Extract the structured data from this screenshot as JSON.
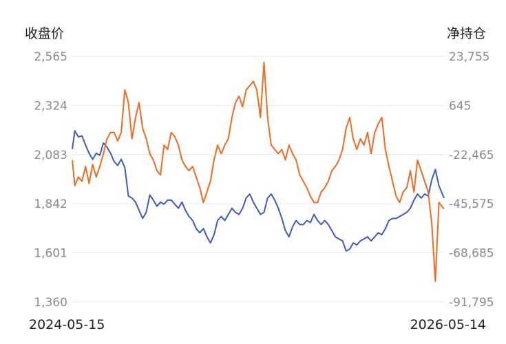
{
  "chart_data": {
    "type": "line",
    "title": "",
    "left_axis": {
      "label": "收盘价",
      "ticks": [
        "2,565",
        "2,324",
        "2,083",
        "1,842",
        "1,601",
        "1,360"
      ],
      "range": [
        1360,
        2565
      ]
    },
    "right_axis": {
      "label": "净持仓",
      "ticks": [
        "23,755",
        "645",
        "-22,465",
        "-45,575",
        "-68,685",
        "-91,795"
      ],
      "range": [
        -91795,
        23755
      ]
    },
    "x_ticks": [
      "2024-05-15",
      "2026-05-14"
    ],
    "x_range": [
      "2024-05-15",
      "2026-05-14"
    ],
    "grid": true,
    "legend": "none",
    "series": [
      {
        "axis": "left",
        "color": "#3b5bbf",
        "points": [
          [
            "2024-05-15",
            2110
          ],
          [
            "2024-05-20",
            2200
          ],
          [
            "2024-05-27",
            2170
          ],
          [
            "2024-06-03",
            2175
          ],
          [
            "2024-06-10",
            2130
          ],
          [
            "2024-06-17",
            2090
          ],
          [
            "2024-06-24",
            2060
          ],
          [
            "2024-07-01",
            2090
          ],
          [
            "2024-07-08",
            2080
          ],
          [
            "2024-07-15",
            2140
          ],
          [
            "2024-07-22",
            2120
          ],
          [
            "2024-07-29",
            2090
          ],
          [
            "2024-08-05",
            2050
          ],
          [
            "2024-08-12",
            2030
          ],
          [
            "2024-08-19",
            2060
          ],
          [
            "2024-08-26",
            2020
          ],
          [
            "2024-09-02",
            1880
          ],
          [
            "2024-09-09",
            1870
          ],
          [
            "2024-09-16",
            1850
          ],
          [
            "2024-09-23",
            1810
          ],
          [
            "2024-09-30",
            1770
          ],
          [
            "2024-10-07",
            1800
          ],
          [
            "2024-10-14",
            1885
          ],
          [
            "2024-10-21",
            1860
          ],
          [
            "2024-10-28",
            1830
          ],
          [
            "2024-11-04",
            1850
          ],
          [
            "2024-11-11",
            1840
          ],
          [
            "2024-11-18",
            1860
          ],
          [
            "2024-11-25",
            1860
          ],
          [
            "2024-12-02",
            1840
          ],
          [
            "2024-12-09",
            1820
          ],
          [
            "2024-12-16",
            1850
          ],
          [
            "2024-12-23",
            1810
          ],
          [
            "2024-12-30",
            1780
          ],
          [
            "2025-01-06",
            1760
          ],
          [
            "2025-01-13",
            1720
          ],
          [
            "2025-01-20",
            1700
          ],
          [
            "2025-01-27",
            1720
          ],
          [
            "2025-02-03",
            1680
          ],
          [
            "2025-02-10",
            1650
          ],
          [
            "2025-02-17",
            1690
          ],
          [
            "2025-02-24",
            1760
          ],
          [
            "2025-03-03",
            1780
          ],
          [
            "2025-03-10",
            1760
          ],
          [
            "2025-03-17",
            1790
          ],
          [
            "2025-03-24",
            1820
          ],
          [
            "2025-03-31",
            1800
          ],
          [
            "2025-04-07",
            1790
          ],
          [
            "2025-04-14",
            1820
          ],
          [
            "2025-04-21",
            1870
          ],
          [
            "2025-04-28",
            1890
          ],
          [
            "2025-05-05",
            1850
          ],
          [
            "2025-05-12",
            1820
          ],
          [
            "2025-05-19",
            1790
          ],
          [
            "2025-05-26",
            1800
          ],
          [
            "2025-06-02",
            1870
          ],
          [
            "2025-06-09",
            1890
          ],
          [
            "2025-06-16",
            1860
          ],
          [
            "2025-06-23",
            1820
          ],
          [
            "2025-06-30",
            1770
          ],
          [
            "2025-07-07",
            1710
          ],
          [
            "2025-07-14",
            1680
          ],
          [
            "2025-07-21",
            1730
          ],
          [
            "2025-07-28",
            1760
          ],
          [
            "2025-08-04",
            1740
          ],
          [
            "2025-08-11",
            1740
          ],
          [
            "2025-08-18",
            1760
          ],
          [
            "2025-08-25",
            1750
          ],
          [
            "2025-09-01",
            1790
          ],
          [
            "2025-09-08",
            1760
          ],
          [
            "2025-09-15",
            1740
          ],
          [
            "2025-09-22",
            1760
          ],
          [
            "2025-09-29",
            1740
          ],
          [
            "2025-10-06",
            1710
          ],
          [
            "2025-10-13",
            1680
          ],
          [
            "2025-10-20",
            1670
          ],
          [
            "2025-10-27",
            1660
          ],
          [
            "2025-11-03",
            1610
          ],
          [
            "2025-11-10",
            1620
          ],
          [
            "2025-11-17",
            1650
          ],
          [
            "2025-11-24",
            1640
          ],
          [
            "2025-12-01",
            1660
          ],
          [
            "2025-12-08",
            1670
          ],
          [
            "2025-12-15",
            1680
          ],
          [
            "2025-12-22",
            1660
          ],
          [
            "2025-12-29",
            1680
          ],
          [
            "2026-01-05",
            1700
          ],
          [
            "2026-01-12",
            1690
          ],
          [
            "2026-01-19",
            1720
          ],
          [
            "2026-01-26",
            1760
          ],
          [
            "2026-02-02",
            1770
          ],
          [
            "2026-02-09",
            1770
          ],
          [
            "2026-02-16",
            1780
          ],
          [
            "2026-02-23",
            1790
          ],
          [
            "2026-03-02",
            1800
          ],
          [
            "2026-03-09",
            1820
          ],
          [
            "2026-03-16",
            1860
          ],
          [
            "2026-03-23",
            1890
          ],
          [
            "2026-03-30",
            1870
          ],
          [
            "2026-04-06",
            1890
          ],
          [
            "2026-04-13",
            1880
          ],
          [
            "2026-04-20",
            1960
          ],
          [
            "2026-04-27",
            2010
          ],
          [
            "2026-05-04",
            1930
          ],
          [
            "2026-05-14",
            1870
          ]
        ]
      },
      {
        "axis": "right",
        "color": "#f26b1d",
        "points": [
          [
            "2024-05-15",
            -25000
          ],
          [
            "2024-05-20",
            -37000
          ],
          [
            "2024-05-27",
            -33000
          ],
          [
            "2024-06-03",
            -35000
          ],
          [
            "2024-06-10",
            -28000
          ],
          [
            "2024-06-17",
            -36000
          ],
          [
            "2024-06-24",
            -27000
          ],
          [
            "2024-07-01",
            -33000
          ],
          [
            "2024-07-08",
            -28000
          ],
          [
            "2024-07-15",
            -22000
          ],
          [
            "2024-07-22",
            -15000
          ],
          [
            "2024-07-29",
            -12000
          ],
          [
            "2024-08-05",
            -12000
          ],
          [
            "2024-08-12",
            -16000
          ],
          [
            "2024-08-19",
            -12000
          ],
          [
            "2024-08-26",
            8000
          ],
          [
            "2024-09-02",
            2000
          ],
          [
            "2024-09-09",
            -15000
          ],
          [
            "2024-09-16",
            -5000
          ],
          [
            "2024-09-23",
            2000
          ],
          [
            "2024-09-30",
            -10000
          ],
          [
            "2024-10-07",
            -15000
          ],
          [
            "2024-10-14",
            -22000
          ],
          [
            "2024-10-21",
            -25000
          ],
          [
            "2024-10-28",
            -30000
          ],
          [
            "2024-11-04",
            -32000
          ],
          [
            "2024-11-11",
            -18000
          ],
          [
            "2024-11-18",
            -20000
          ],
          [
            "2024-11-25",
            -12000
          ],
          [
            "2024-12-02",
            -14000
          ],
          [
            "2024-12-09",
            -18000
          ],
          [
            "2024-12-16",
            -25000
          ],
          [
            "2024-12-23",
            -28000
          ],
          [
            "2024-12-30",
            -30000
          ],
          [
            "2025-01-06",
            -28000
          ],
          [
            "2025-01-13",
            -33000
          ],
          [
            "2025-01-20",
            -38000
          ],
          [
            "2025-01-27",
            -45000
          ],
          [
            "2025-02-03",
            -40000
          ],
          [
            "2025-02-10",
            -35000
          ],
          [
            "2025-02-17",
            -25000
          ],
          [
            "2025-02-24",
            -18000
          ],
          [
            "2025-03-03",
            -22000
          ],
          [
            "2025-03-10",
            -18000
          ],
          [
            "2025-03-17",
            -15000
          ],
          [
            "2025-03-24",
            -5000
          ],
          [
            "2025-03-31",
            2000
          ],
          [
            "2025-04-07",
            5000
          ],
          [
            "2025-04-14",
            0
          ],
          [
            "2025-04-21",
            8000
          ],
          [
            "2025-04-28",
            10000
          ],
          [
            "2025-05-05",
            12000
          ],
          [
            "2025-05-12",
            8000
          ],
          [
            "2025-05-19",
            -5000
          ],
          [
            "2025-05-26",
            21000
          ],
          [
            "2025-06-02",
            -5000
          ],
          [
            "2025-06-09",
            -18000
          ],
          [
            "2025-06-16",
            -20000
          ],
          [
            "2025-06-23",
            -22000
          ],
          [
            "2025-06-30",
            -20000
          ],
          [
            "2025-07-07",
            -25000
          ],
          [
            "2025-07-14",
            -18000
          ],
          [
            "2025-07-21",
            -22000
          ],
          [
            "2025-07-28",
            -25000
          ],
          [
            "2025-08-04",
            -32000
          ],
          [
            "2025-08-11",
            -35000
          ],
          [
            "2025-08-18",
            -38000
          ],
          [
            "2025-08-25",
            -42000
          ],
          [
            "2025-09-01",
            -45000
          ],
          [
            "2025-09-08",
            -45000
          ],
          [
            "2025-09-15",
            -40000
          ],
          [
            "2025-09-22",
            -38000
          ],
          [
            "2025-09-29",
            -35000
          ],
          [
            "2025-10-06",
            -30000
          ],
          [
            "2025-10-13",
            -28000
          ],
          [
            "2025-10-20",
            -25000
          ],
          [
            "2025-10-27",
            -20000
          ],
          [
            "2025-11-03",
            -10000
          ],
          [
            "2025-11-10",
            -5000
          ],
          [
            "2025-11-17",
            -15000
          ],
          [
            "2025-11-24",
            -20000
          ],
          [
            "2025-12-01",
            -15000
          ],
          [
            "2025-12-08",
            -18000
          ],
          [
            "2025-12-15",
            -12000
          ],
          [
            "2025-12-22",
            -22000
          ],
          [
            "2025-12-29",
            -12000
          ],
          [
            "2026-01-05",
            -8000
          ],
          [
            "2026-01-12",
            -5000
          ],
          [
            "2026-01-19",
            -20000
          ],
          [
            "2026-01-26",
            -28000
          ],
          [
            "2026-02-02",
            -35000
          ],
          [
            "2026-02-09",
            -42000
          ],
          [
            "2026-02-16",
            -45000
          ],
          [
            "2026-02-23",
            -40000
          ],
          [
            "2026-03-02",
            -38000
          ],
          [
            "2026-03-09",
            -30000
          ],
          [
            "2026-03-16",
            -40000
          ],
          [
            "2026-03-23",
            -25000
          ],
          [
            "2026-03-30",
            -30000
          ],
          [
            "2026-04-06",
            -35000
          ],
          [
            "2026-04-13",
            -40000
          ],
          [
            "2026-04-20",
            -55000
          ],
          [
            "2026-04-27",
            -82000
          ],
          [
            "2026-05-04",
            -45000
          ],
          [
            "2026-05-14",
            -48000
          ]
        ]
      }
    ]
  }
}
